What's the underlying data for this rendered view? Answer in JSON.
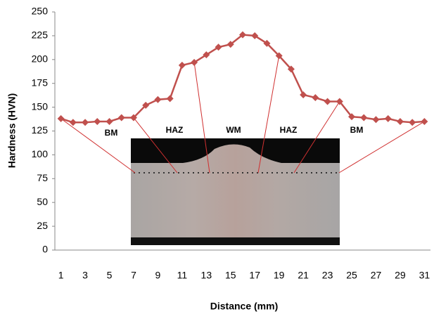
{
  "chart_data": {
    "type": "line",
    "x_label": "Distance (mm)",
    "y_label": "Hardness (HVN)",
    "categories": [
      "1",
      null,
      "3",
      null,
      "5",
      null,
      "7",
      null,
      "9",
      null,
      "11",
      null,
      "13",
      null,
      "15",
      null,
      "17",
      null,
      "19",
      null,
      "21",
      null,
      "23",
      null,
      "25",
      null,
      "27",
      null,
      "29",
      null,
      "31"
    ],
    "series": [
      {
        "name": "Hardness",
        "color": "#c0504d",
        "values": [
          138,
          134,
          134,
          135,
          135,
          139,
          139,
          152,
          158,
          159,
          194,
          197,
          205,
          213,
          216,
          226,
          225,
          217,
          204,
          190,
          163,
          160,
          156,
          156,
          140,
          139,
          137,
          138,
          135,
          134,
          135
        ]
      }
    ],
    "ylim": [
      0,
      250
    ],
    "yticks": [
      0,
      25,
      50,
      75,
      100,
      125,
      150,
      175,
      200,
      225,
      250
    ],
    "grid": false,
    "annotations": [
      "BM",
      "HAZ",
      "WM",
      "HAZ",
      "BM"
    ]
  }
}
